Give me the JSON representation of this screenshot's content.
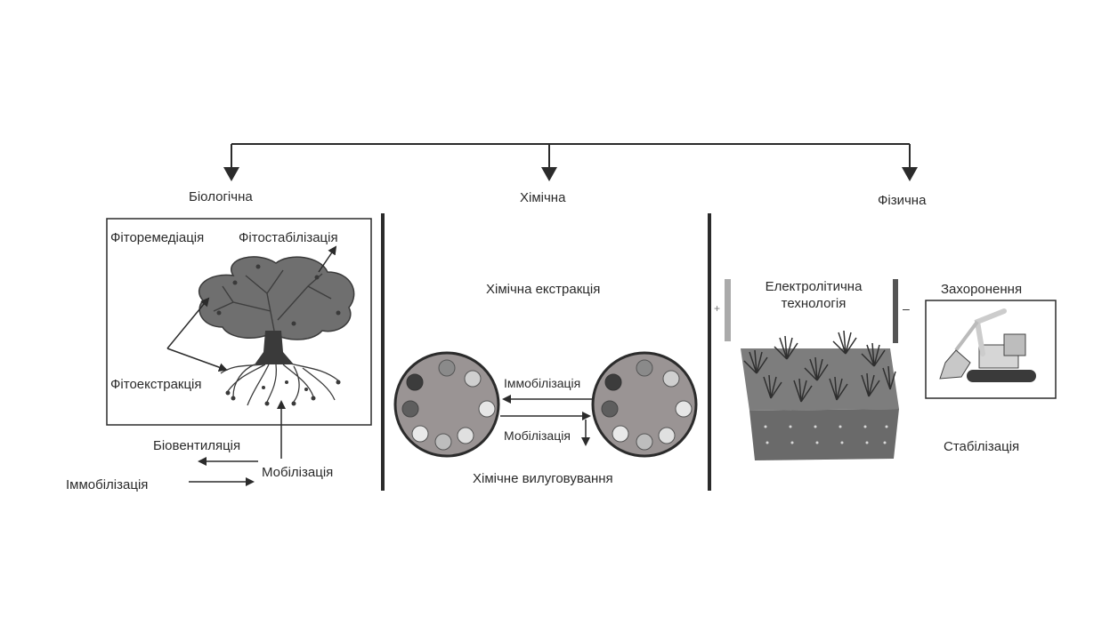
{
  "branches": {
    "biological": "Біологічна",
    "chemical": "Хімічна",
    "physical": "Фізична"
  },
  "biological": {
    "phytoremediation": "Фіторемедіація",
    "phytostabilization": "Фітостабілізація",
    "phytoextraction": "Фітоекстракція",
    "bioventilation": "Біовентиляція",
    "mobilization": "Мобілізація",
    "immobilization": "Іммобілізація"
  },
  "chemical": {
    "extraction": "Хімічна екстракція",
    "immobilization": "Іммобілізація",
    "mobilization": "Мобілізація",
    "leaching": "Хімічне вилуговування"
  },
  "physical": {
    "electrolytic_line1": "Електролітична",
    "electrolytic_line2": "технологія",
    "plus_sign": "+",
    "minus_sign": "–",
    "burial": "Захоронення",
    "stabilization": "Стабілізація"
  },
  "colors": {
    "line": "#2b2b2b",
    "tree": "#6f6f6f",
    "disc": "#9a9494",
    "soil": "#6a6a6a",
    "electrode": "#aaaaaa"
  }
}
